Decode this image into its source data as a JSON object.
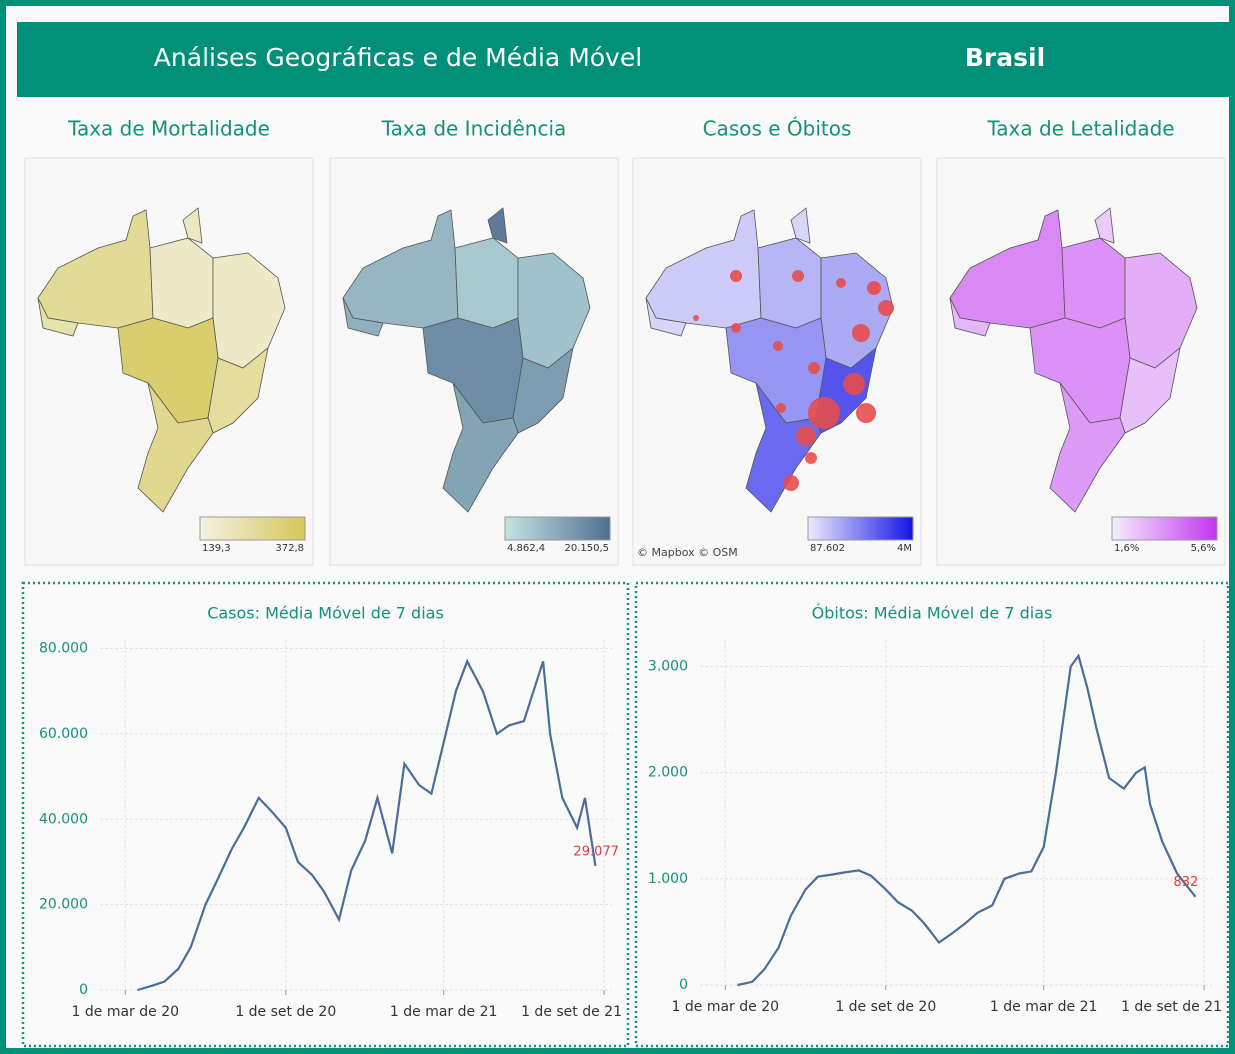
{
  "header": {
    "title": "Análises Geográficas e de Média Móvel",
    "region": "Brasil"
  },
  "maps": [
    {
      "title": "Taxa de Mortalidade",
      "legend": {
        "min": "139,3",
        "max": "372,8",
        "colors": [
          "#f4f2e2",
          "#d4c75a"
        ]
      }
    },
    {
      "title": "Taxa de Incidência",
      "legend": {
        "min": "4.862,4",
        "max": "20.150,5",
        "colors": [
          "#c3e5e3",
          "#4f6f90"
        ]
      }
    },
    {
      "title": "Casos e Óbitos",
      "legend": {
        "min": "87.602",
        "max": "4M",
        "colors": [
          "#ecebfb",
          "#1414e8"
        ]
      },
      "attribution": "© Mapbox © OSM"
    },
    {
      "title": "Taxa de Letalidade",
      "legend": {
        "min": "1,6%",
        "max": "5,6%",
        "colors": [
          "#f5effc",
          "#c233f0"
        ]
      }
    }
  ],
  "chart_data": [
    {
      "type": "line",
      "title": "Casos: Média Móvel de 7 dias",
      "color": "#4a6d9c",
      "grid": true,
      "x": [
        "2020-03-15",
        "2020-04-01",
        "2020-04-15",
        "2020-05-01",
        "2020-05-15",
        "2020-06-01",
        "2020-06-15",
        "2020-07-01",
        "2020-07-15",
        "2020-08-01",
        "2020-08-15",
        "2020-09-01",
        "2020-09-15",
        "2020-10-01",
        "2020-10-15",
        "2020-11-01",
        "2020-11-15",
        "2020-12-01",
        "2020-12-15",
        "2021-01-01",
        "2021-01-15",
        "2021-02-01",
        "2021-02-15",
        "2021-03-01",
        "2021-03-15",
        "2021-03-28",
        "2021-04-15",
        "2021-05-01",
        "2021-05-15",
        "2021-06-01",
        "2021-06-23",
        "2021-07-01",
        "2021-07-15",
        "2021-08-01",
        "2021-08-10",
        "2021-08-22"
      ],
      "values": [
        0,
        1000,
        2000,
        5000,
        10000,
        20000,
        26000,
        33000,
        38000,
        45000,
        42000,
        38000,
        30000,
        27000,
        23000,
        16500,
        28000,
        35000,
        45000,
        32000,
        53000,
        48000,
        46000,
        58000,
        70000,
        77000,
        70000,
        60000,
        62000,
        63000,
        77000,
        60000,
        45000,
        38000,
        45000,
        29077
      ],
      "value_labels": [
        null,
        null,
        null,
        null,
        null,
        null,
        null,
        null,
        null,
        null,
        null,
        null,
        null,
        null,
        null,
        null,
        null,
        null,
        null,
        null,
        null,
        null,
        null,
        null,
        null,
        null,
        null,
        null,
        null,
        null,
        null,
        null,
        null,
        null,
        null,
        "29.077"
      ],
      "xlim": [
        "2020-02-01",
        "2021-09-10"
      ],
      "xticks": [
        {
          "value": "2020-03-01",
          "label": "1 de mar de 20"
        },
        {
          "value": "2020-09-01",
          "label": "1 de set de 20"
        },
        {
          "value": "2021-03-01",
          "label": "1 de mar de 21"
        },
        {
          "value": "2021-09-01",
          "label": "1 de set de 21"
        }
      ],
      "ylim": [
        0,
        82000
      ],
      "yticks": [
        0,
        {
          "value": 20000,
          "label": "20.000"
        },
        {
          "value": 40000,
          "label": "40.000"
        },
        {
          "value": 60000,
          "label": "60.000"
        },
        {
          "value": 80000,
          "label": "80.000"
        }
      ]
    },
    {
      "type": "line",
      "title": "Óbitos: Média Móvel de 7 dias",
      "color": "#4a6d9c",
      "grid": true,
      "x": [
        "2020-03-15",
        "2020-04-01",
        "2020-04-15",
        "2020-05-01",
        "2020-05-15",
        "2020-06-01",
        "2020-06-15",
        "2020-07-01",
        "2020-07-15",
        "2020-08-01",
        "2020-08-15",
        "2020-09-01",
        "2020-09-15",
        "2020-10-01",
        "2020-10-15",
        "2020-11-01",
        "2020-11-15",
        "2020-12-01",
        "2020-12-15",
        "2021-01-01",
        "2021-01-15",
        "2021-02-01",
        "2021-02-15",
        "2021-03-01",
        "2021-03-15",
        "2021-04-01",
        "2021-04-10",
        "2021-04-20",
        "2021-05-01",
        "2021-05-15",
        "2021-06-01",
        "2021-06-15",
        "2021-06-25",
        "2021-07-01",
        "2021-07-15",
        "2021-08-01",
        "2021-08-22"
      ],
      "values": [
        0,
        30,
        150,
        350,
        650,
        900,
        1020,
        1040,
        1060,
        1080,
        1030,
        900,
        780,
        700,
        580,
        400,
        480,
        580,
        680,
        750,
        1000,
        1050,
        1070,
        1300,
        2000,
        3000,
        3100,
        2800,
        2400,
        1950,
        1850,
        2000,
        2050,
        1700,
        1350,
        1050,
        832
      ],
      "value_labels": [
        null,
        null,
        null,
        null,
        null,
        null,
        null,
        null,
        null,
        null,
        null,
        null,
        null,
        null,
        null,
        null,
        null,
        null,
        null,
        null,
        null,
        null,
        null,
        null,
        null,
        null,
        null,
        null,
        null,
        null,
        null,
        null,
        null,
        null,
        null,
        null,
        "832"
      ],
      "xlim": [
        "2020-02-01",
        "2021-09-10"
      ],
      "xticks": [
        {
          "value": "2020-03-01",
          "label": "1 de mar de 20"
        },
        {
          "value": "2020-09-01",
          "label": "1 de set de 20"
        },
        {
          "value": "2021-03-01",
          "label": "1 de mar de 21"
        },
        {
          "value": "2021-09-01",
          "label": "1 de set de 21"
        }
      ],
      "ylim": [
        0,
        3250
      ],
      "yticks": [
        0,
        {
          "value": 1000,
          "label": "1.000"
        },
        {
          "value": 2000,
          "label": "2.000"
        },
        {
          "value": 3000,
          "label": "3.000"
        }
      ]
    }
  ]
}
